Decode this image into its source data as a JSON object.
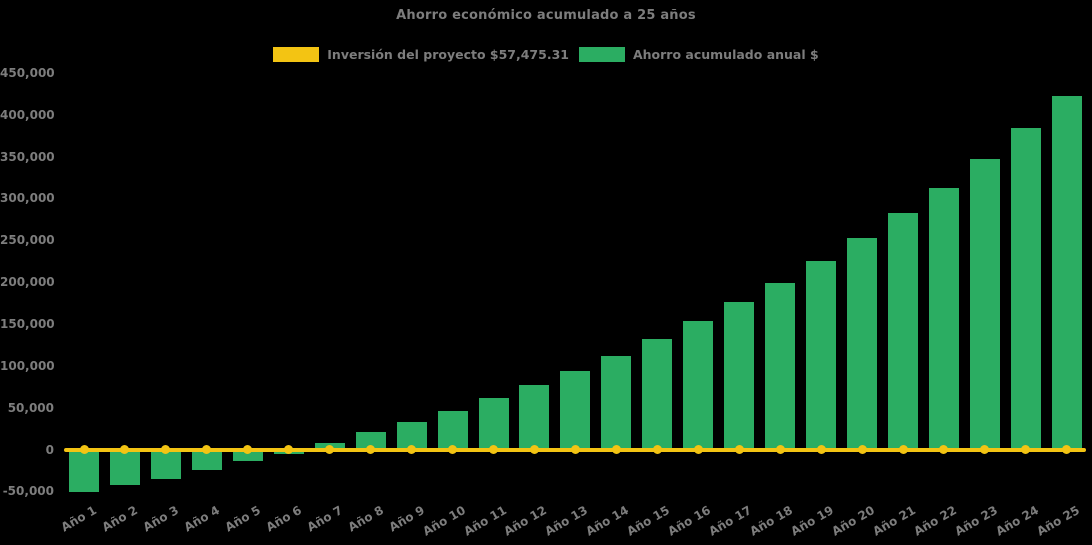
{
  "chart_data": {
    "type": "bar",
    "title": "Ahorro económico acumulado a 25 años",
    "categories": [
      "Año 1",
      "Año 2",
      "Año 3",
      "Año 4",
      "Año 5",
      "Año 6",
      "Año 7",
      "Año 8",
      "Año 9",
      "Año 10",
      "Año 11",
      "Año 12",
      "Año 13",
      "Año 14",
      "Año 15",
      "Año 16",
      "Año 17",
      "Año 18",
      "Año 19",
      "Año 20",
      "Año 21",
      "Año 22",
      "Año 23",
      "Año 24",
      "Año 25"
    ],
    "series": [
      {
        "name": "Inversión del proyecto $57,475.31",
        "render_as": "line",
        "color": "#F3C413",
        "values": [
          0,
          0,
          0,
          0,
          0,
          0,
          0,
          0,
          0,
          0,
          0,
          0,
          0,
          0,
          0,
          0,
          0,
          0,
          0,
          0,
          0,
          0,
          0,
          0,
          0
        ]
      },
      {
        "name": "Ahorro acumulado anual $",
        "render_as": "bar",
        "color": "#2BAD62",
        "values": [
          -51000,
          -43000,
          -35500,
          -24500,
          -14000,
          -5500,
          8000,
          21500,
          32500,
          46000,
          61000,
          77500,
          94000,
          111500,
          132000,
          153500,
          176000,
          199500,
          225500,
          253000,
          282000,
          313000,
          346500,
          384000,
          422000
        ]
      }
    ],
    "xlabel": "",
    "ylabel": "",
    "ylim": [
      -50000,
      450000
    ],
    "ytick_step": 50000,
    "ytick_labels": [
      "450,000",
      "400,000",
      "350,000",
      "300,000",
      "250,000",
      "200,000",
      "150,000",
      "100,000",
      "50,000",
      "0",
      "-50,000"
    ],
    "ytick_values": [
      450000,
      400000,
      350000,
      300000,
      250000,
      200000,
      150000,
      100000,
      50000,
      0,
      -50000
    ],
    "grid": false,
    "legend_position": "top",
    "background_color": "#000000",
    "text_color": "#7D7D7D"
  }
}
